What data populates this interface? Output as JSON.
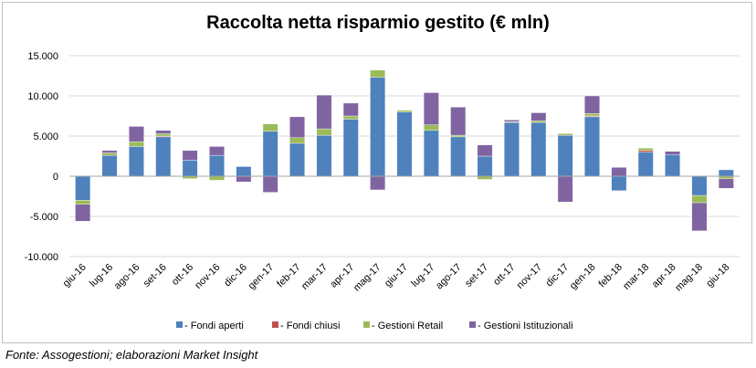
{
  "chart_data": {
    "type": "bar",
    "stacked": true,
    "title": "Raccolta netta risparmio gestito (€ mln)",
    "xlabel": "",
    "ylabel": "",
    "ylim": [
      -10000,
      15000
    ],
    "yticks": [
      -10000,
      -5000,
      0,
      5000,
      10000,
      15000
    ],
    "ytick_labels": [
      "-10.000",
      "-5.000",
      "0",
      "5.000",
      "10.000",
      "15.000"
    ],
    "grid": true,
    "legend_position": "bottom",
    "categories": [
      "giu-16",
      "lug-16",
      "ago-16",
      "set-16",
      "ott-16",
      "nov-16",
      "dic-16",
      "gen-17",
      "feb-17",
      "mar-17",
      "apr-17",
      "mag-17",
      "giu-17",
      "lug-17",
      "ago-17",
      "set-17",
      "ott-17",
      "nov-17",
      "dic-17",
      "gen-18",
      "feb-18",
      "mar-18",
      "apr-18",
      "mag-18",
      "giu-18"
    ],
    "series": [
      {
        "name": "Fondi aperti",
        "color": "#4f81bd",
        "values": [
          -3000,
          2600,
          3700,
          4900,
          2000,
          2600,
          1200,
          5600,
          4100,
          5100,
          7100,
          12300,
          8000,
          5700,
          4900,
          2500,
          6700,
          6700,
          5100,
          7400,
          -1800,
          3000,
          2700,
          -2400,
          800
        ]
      },
      {
        "name": "Fondi chiusi",
        "color": "#c0504d",
        "values": [
          0,
          0,
          0,
          100,
          0,
          0,
          0,
          0,
          0,
          0,
          0,
          0,
          0,
          0,
          0,
          0,
          0,
          0,
          0,
          100,
          0,
          200,
          0,
          0,
          0
        ]
      },
      {
        "name": "Gestioni Retail",
        "color": "#9bbb59",
        "values": [
          -500,
          300,
          600,
          300,
          -300,
          -500,
          0,
          900,
          700,
          800,
          400,
          900,
          200,
          700,
          200,
          -400,
          100,
          200,
          200,
          300,
          0,
          300,
          0,
          -900,
          -300
        ]
      },
      {
        "name": "Gestioni Istituzionali",
        "color": "#8064a2",
        "values": [
          -2100,
          300,
          1900,
          400,
          1200,
          1100,
          -700,
          -2000,
          2600,
          4200,
          1600,
          -1700,
          0,
          4000,
          3500,
          1400,
          200,
          1000,
          -3200,
          2200,
          1100,
          0,
          400,
          -3500,
          -1200
        ]
      }
    ]
  },
  "source_note": "Fonte: Assogestioni; elaborazioni Market Insight",
  "legend_prefix": "- "
}
